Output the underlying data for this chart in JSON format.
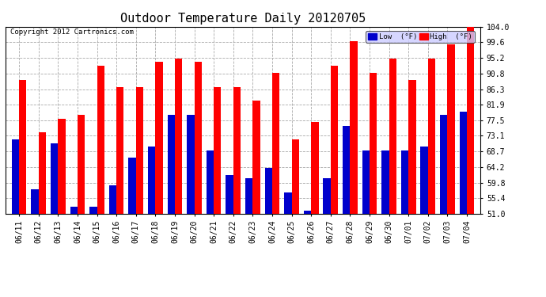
{
  "title": "Outdoor Temperature Daily 20120705",
  "copyright": "Copyright 2012 Cartronics.com",
  "categories": [
    "06/11",
    "06/12",
    "06/13",
    "06/14",
    "06/15",
    "06/16",
    "06/17",
    "06/18",
    "06/19",
    "06/20",
    "06/21",
    "06/22",
    "06/23",
    "06/24",
    "06/25",
    "06/26",
    "06/27",
    "06/28",
    "06/29",
    "06/30",
    "07/01",
    "07/02",
    "07/03",
    "07/04"
  ],
  "high": [
    89,
    74,
    78,
    79,
    93,
    87,
    87,
    94,
    95,
    94,
    87,
    87,
    83,
    91,
    72,
    77,
    93,
    100,
    91,
    95,
    89,
    95,
    99,
    104
  ],
  "low": [
    72,
    58,
    71,
    53,
    53,
    59,
    67,
    70,
    79,
    79,
    69,
    62,
    61,
    64,
    57,
    52,
    61,
    76,
    69,
    69,
    69,
    70,
    79,
    80
  ],
  "ylim": [
    51.0,
    104.0
  ],
  "yticks": [
    51.0,
    55.4,
    59.8,
    64.2,
    68.7,
    73.1,
    77.5,
    81.9,
    86.3,
    90.8,
    95.2,
    99.6,
    104.0
  ],
  "high_color": "#ff0000",
  "low_color": "#0000cc",
  "bg_color": "#ffffff",
  "grid_color": "#aaaaaa",
  "title_fontsize": 11,
  "tick_fontsize": 7,
  "copyright_fontsize": 6.5,
  "bar_width": 0.38
}
